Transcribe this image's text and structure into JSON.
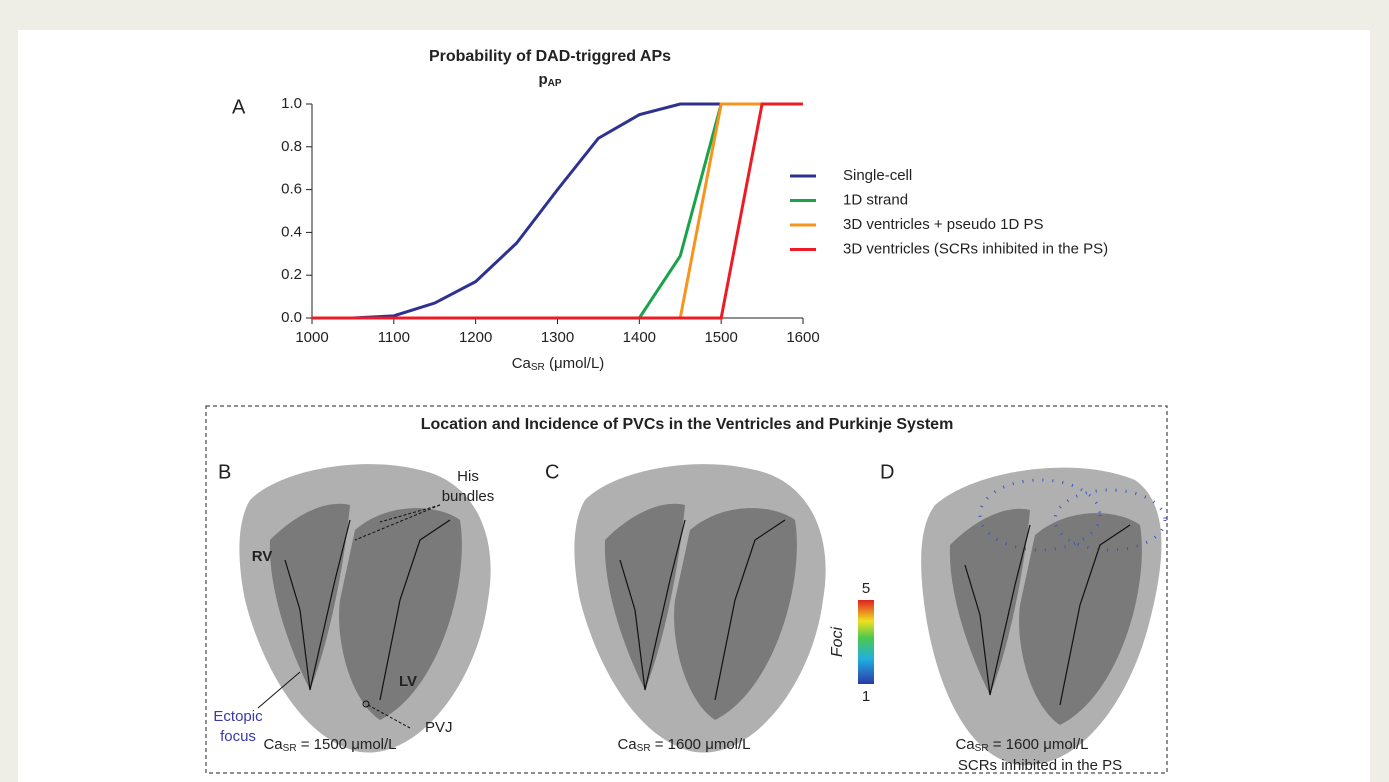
{
  "chart_data": {
    "type": "line",
    "panel_label": "A",
    "title": "Probability of DAD-triggred APs",
    "subtitle": {
      "main": "p",
      "sub": "AP"
    },
    "x_label": {
      "main": "Ca",
      "sub": "SR",
      "rest": " (μmol/L)"
    },
    "x": [
      1000,
      1050,
      1100,
      1150,
      1200,
      1250,
      1300,
      1350,
      1400,
      1450,
      1500,
      1550,
      1600
    ],
    "series": [
      {
        "name": "Single-cell",
        "color": "#2e3192",
        "values": [
          0,
          0,
          0.01,
          0.07,
          0.17,
          0.35,
          0.6,
          0.84,
          0.95,
          1,
          1,
          1,
          1
        ]
      },
      {
        "name": "1D strand",
        "color": "#1aa34a",
        "values": [
          0,
          0,
          0,
          0,
          0,
          0,
          0,
          0,
          0,
          0.29,
          1,
          1,
          1
        ]
      },
      {
        "name": "3D ventricles + pseudo 1D PS",
        "color": "#f7941d",
        "values": [
          0,
          0,
          0,
          0,
          0,
          0,
          0,
          0,
          0,
          0,
          1,
          1,
          1
        ]
      },
      {
        "name": "3D ventricles (SCRs inhibited in the PS)",
        "color": "#ed1c24",
        "values": [
          0,
          0,
          0,
          0,
          0,
          0,
          0,
          0,
          0,
          0,
          0,
          1,
          1
        ]
      }
    ],
    "xlim": [
      1000,
      1600
    ],
    "xticks": [
      1000,
      1100,
      1200,
      1300,
      1400,
      1500,
      1600
    ],
    "ylim": [
      0,
      1
    ],
    "yticks": [
      {
        "value": 0,
        "label": "0.0"
      },
      0.2,
      0.4,
      0.6,
      0.8,
      {
        "value": 1,
        "label": "1.0"
      }
    ],
    "legend": "right"
  },
  "panels": {
    "title": "Location and Incidence of PVCs in the Ventricles and Purkinje System",
    "B": {
      "label": "B",
      "his": [
        "His",
        "bundles"
      ],
      "rv": "RV",
      "lv": "LV",
      "ectopic": [
        "Ectopic",
        "focus"
      ],
      "pvj": "PVJ",
      "caption": {
        "main": "Ca",
        "sub": "SR",
        "rest": " = 1500 μmol/L"
      }
    },
    "C": {
      "label": "C",
      "caption": {
        "main": "Ca",
        "sub": "SR",
        "rest": " = 1600 μmol/L"
      }
    },
    "D": {
      "label": "D",
      "caption": {
        "main": "Ca",
        "sub": "SR",
        "rest": " = 1600 μmol/L"
      },
      "caption2": "SCRs inhibited in the PS"
    },
    "colorbar": {
      "label": "Foci",
      "max": 5,
      "min": 1
    }
  }
}
